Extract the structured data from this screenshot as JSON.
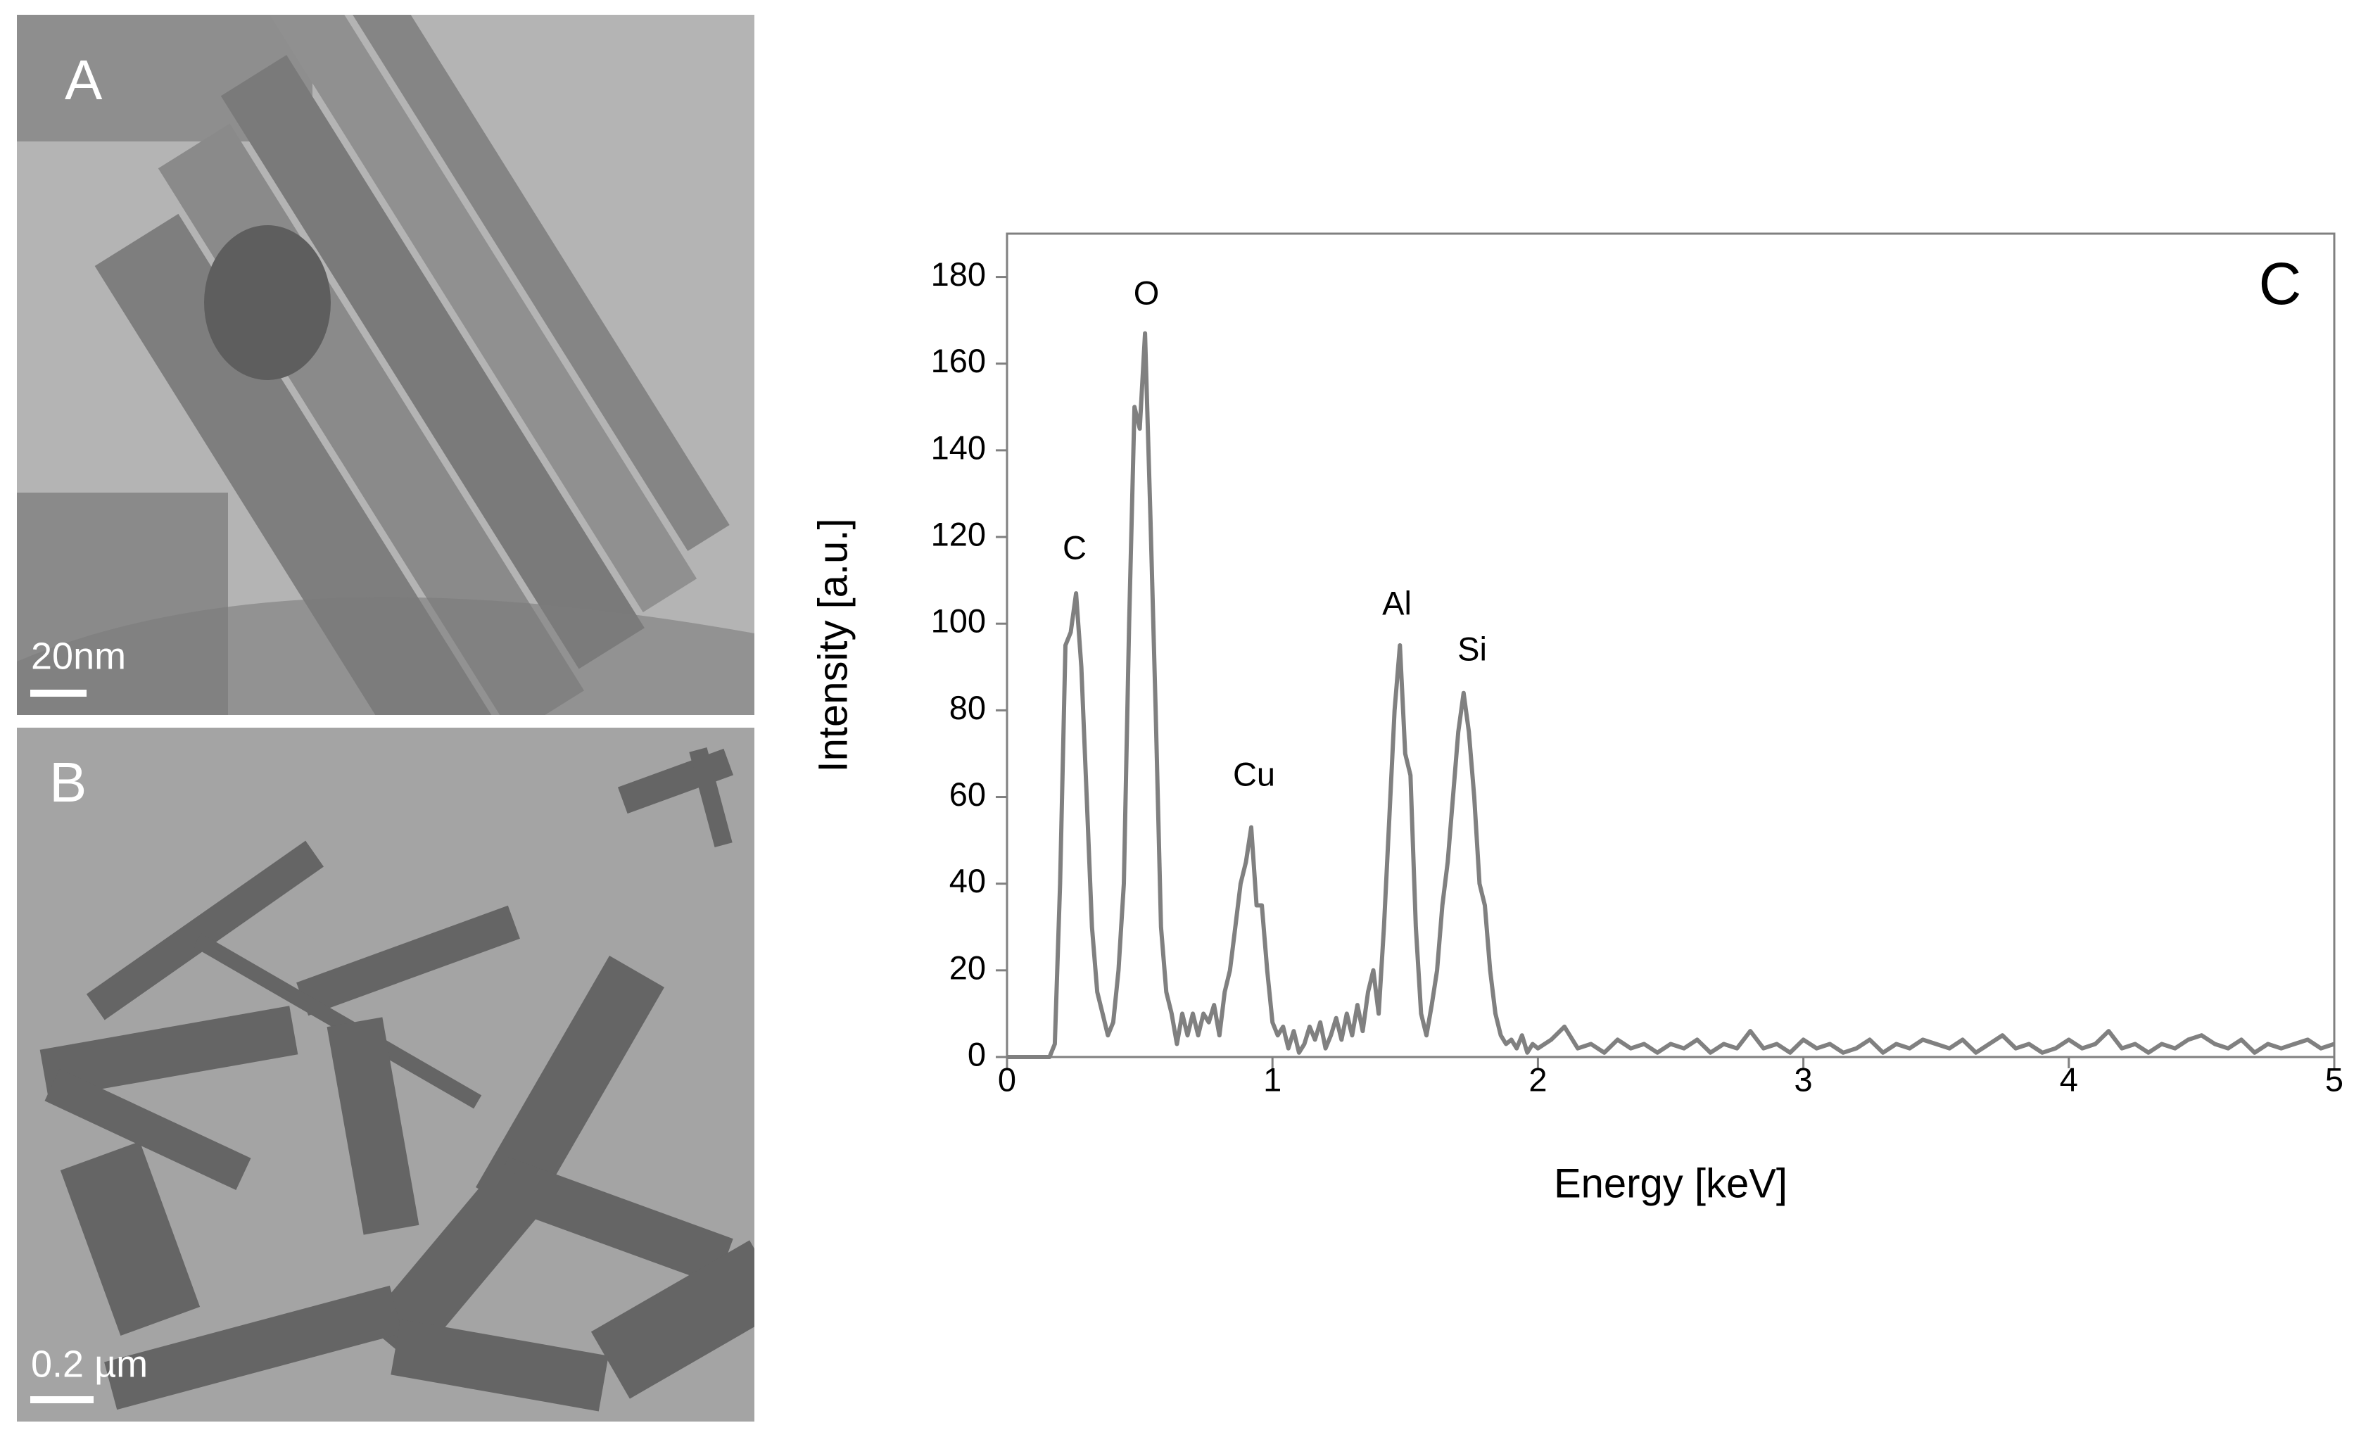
{
  "micrographs": [
    {
      "label": "A",
      "scale_bar": "20nm"
    },
    {
      "label": "B",
      "scale_bar": "0.2 µm"
    }
  ],
  "chart_data": {
    "type": "line",
    "panel_label": "C",
    "x_label": "Energy [keV]",
    "y_label": "Intensity [a.u.]",
    "xlim": [
      0,
      5
    ],
    "xticks": [
      0,
      1,
      2,
      3,
      4,
      5
    ],
    "ylim": [
      0,
      190
    ],
    "yticks": [
      0,
      20,
      40,
      60,
      80,
      100,
      120,
      140,
      160,
      180
    ],
    "color": "#808080",
    "annotations": [
      "C",
      "O",
      "Cu",
      "Al",
      "Si"
    ],
    "x": [
      0,
      0.02,
      0.04,
      0.06,
      0.08,
      0.1,
      0.12,
      0.14,
      0.16,
      0.18,
      0.2,
      0.22,
      0.24,
      0.26,
      0.28,
      0.3,
      0.32,
      0.34,
      0.36,
      0.38,
      0.4,
      0.42,
      0.44,
      0.46,
      0.48,
      0.5,
      0.52,
      0.54,
      0.56,
      0.58,
      0.6,
      0.62,
      0.64,
      0.66,
      0.68,
      0.7,
      0.72,
      0.74,
      0.76,
      0.78,
      0.8,
      0.82,
      0.84,
      0.86,
      0.88,
      0.9,
      0.92,
      0.94,
      0.96,
      0.98,
      1,
      1.02,
      1.04,
      1.06,
      1.08,
      1.1,
      1.12,
      1.14,
      1.16,
      1.18,
      1.2,
      1.22,
      1.24,
      1.26,
      1.28,
      1.3,
      1.32,
      1.34,
      1.36,
      1.38,
      1.4,
      1.42,
      1.44,
      1.46,
      1.48,
      1.5,
      1.52,
      1.54,
      1.56,
      1.58,
      1.6,
      1.62,
      1.64,
      1.66,
      1.68,
      1.7,
      1.72,
      1.74,
      1.76,
      1.78,
      1.8,
      1.82,
      1.84,
      1.86,
      1.88,
      1.9,
      1.92,
      1.94,
      1.96,
      1.98,
      2,
      2.05,
      2.1,
      2.15,
      2.2,
      2.25,
      2.3,
      2.35,
      2.4,
      2.45,
      2.5,
      2.55,
      2.6,
      2.65,
      2.7,
      2.75,
      2.8,
      2.85,
      2.9,
      2.95,
      3,
      3.05,
      3.1,
      3.15,
      3.2,
      3.25,
      3.3,
      3.35,
      3.4,
      3.45,
      3.5,
      3.55,
      3.6,
      3.65,
      3.7,
      3.75,
      3.8,
      3.85,
      3.9,
      3.95,
      4,
      4.05,
      4.1,
      4.15,
      4.2,
      4.25,
      4.3,
      4.35,
      4.4,
      4.45,
      4.5,
      4.55,
      4.6,
      4.65,
      4.7,
      4.75,
      4.8,
      4.85,
      4.9,
      4.95,
      5
    ],
    "values": [
      0,
      0,
      0,
      0,
      0,
      0,
      0,
      0,
      0,
      3,
      40,
      95,
      98,
      107,
      90,
      60,
      30,
      15,
      10,
      5,
      8,
      20,
      40,
      100,
      150,
      145,
      167,
      125,
      80,
      30,
      15,
      10,
      3,
      10,
      5,
      10,
      5,
      10,
      8,
      12,
      5,
      15,
      20,
      30,
      40,
      45,
      53,
      35,
      35,
      20,
      8,
      5,
      7,
      2,
      6,
      1,
      3,
      7,
      4,
      8,
      2,
      5,
      9,
      4,
      10,
      5,
      12,
      6,
      15,
      20,
      10,
      30,
      55,
      80,
      95,
      70,
      65,
      30,
      10,
      5,
      12,
      20,
      35,
      45,
      60,
      75,
      84,
      75,
      60,
      40,
      35,
      20,
      10,
      5,
      3,
      4,
      2,
      5,
      1,
      3,
      2,
      4,
      7,
      2,
      3,
      1,
      4,
      2,
      3,
      1,
      3,
      2,
      4,
      1,
      3,
      2,
      6,
      2,
      3,
      1,
      4,
      2,
      3,
      1,
      2,
      4,
      1,
      3,
      2,
      4,
      3,
      2,
      4,
      1,
      3,
      5,
      2,
      3,
      1,
      2,
      4,
      2,
      3,
      6,
      2,
      3,
      1,
      3,
      2,
      4,
      5,
      3,
      2,
      4,
      1,
      3,
      2,
      3,
      4,
      2,
      3
    ]
  }
}
